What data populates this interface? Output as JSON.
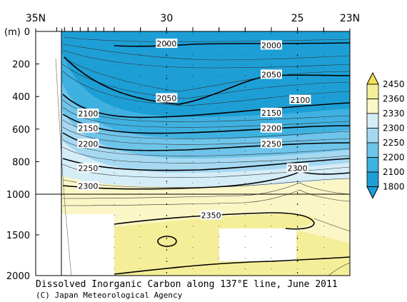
{
  "title": "Dissolved Inorganic Carbon along 137°E line, June 2011",
  "credit": "(C) Japan Meteorological Agency",
  "chart_data": {
    "type": "contour",
    "title": "Dissolved Inorganic Carbon along 137°E line, June 2011",
    "x_axis": {
      "label": "",
      "ticks": [
        "35N",
        "30",
        "25",
        "23N"
      ],
      "tick_values": [
        35,
        30,
        25,
        23
      ],
      "range": [
        35,
        23
      ]
    },
    "y_axis": {
      "unit_label": "(m)",
      "ticks": [
        "0",
        "200",
        "400",
        "600",
        "800",
        "1000",
        "1500",
        "2000"
      ],
      "tick_values": [
        0,
        200,
        400,
        600,
        800,
        1000,
        1500,
        2000
      ],
      "range": [
        0,
        2000
      ],
      "scale_note": "linear 0-1000 m, compressed 1000-2000 m"
    },
    "station_latitudes": [
      34.2,
      33.9,
      33.6,
      33.3,
      33.0,
      32.7,
      32.4,
      32.0,
      31.0,
      30.0,
      29.0,
      28.0,
      27.0,
      26.0,
      25.0,
      24.0
    ],
    "contour_labels": [
      {
        "value": "2000",
        "lat": 30.0,
        "depth": 75
      },
      {
        "value": "2000",
        "lat": 26.0,
        "depth": 85
      },
      {
        "value": "2050",
        "lat": 26.0,
        "depth": 265
      },
      {
        "value": "2050",
        "lat": 30.0,
        "depth": 410
      },
      {
        "value": "2100",
        "lat": 24.9,
        "depth": 420
      },
      {
        "value": "2100",
        "lat": 33.0,
        "depth": 505
      },
      {
        "value": "2150",
        "lat": 26.0,
        "depth": 500
      },
      {
        "value": "2150",
        "lat": 33.0,
        "depth": 595
      },
      {
        "value": "2200",
        "lat": 26.0,
        "depth": 595
      },
      {
        "value": "2200",
        "lat": 33.0,
        "depth": 690
      },
      {
        "value": "2250",
        "lat": 26.0,
        "depth": 690
      },
      {
        "value": "2250",
        "lat": 33.0,
        "depth": 840
      },
      {
        "value": "2300",
        "lat": 25.0,
        "depth": 840
      },
      {
        "value": "2300",
        "lat": 33.0,
        "depth": 950
      },
      {
        "value": "2350",
        "lat": 28.3,
        "depth": 1260
      }
    ],
    "colorbar": {
      "levels": [
        1800,
        2100,
        2200,
        2250,
        2300,
        2330,
        2360,
        2450
      ],
      "labels": [
        "2450",
        "2360",
        "2330",
        "2300",
        "2250",
        "2200",
        "2100",
        "1800"
      ],
      "colors": {
        "below_2100": "#1d9fd6",
        "2100_2200": "#3fb1e0",
        "2200_2250": "#6fc4ea",
        "2250_2300": "#a6d9f1",
        "2300_2330": "#d5edf7",
        "2330_2360": "#fbf6c6",
        "2360_2450": "#f5ee98",
        "above_2450": "#efe259"
      }
    }
  }
}
